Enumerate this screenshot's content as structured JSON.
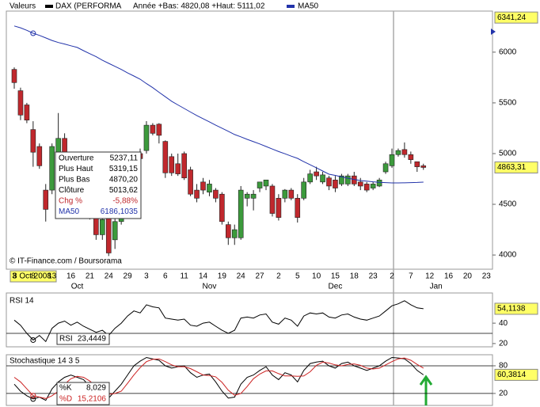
{
  "chart_data": [
    {
      "type": "candlestick",
      "header_label": "Valeurs",
      "name": "DAX (PERFORMA",
      "range_text": "Année +Bas: 4820,08 +Haut: 5111,02",
      "credit": "© IT-Finance.com / Boursorama",
      "cursor_label": "8 Oct 2008",
      "up_color": "#3c9a3c",
      "down_color": "#c0282d",
      "categories": [
        "3",
        null,
        null,
        "8",
        null,
        null,
        "13",
        null,
        null,
        "16",
        null,
        null,
        "21",
        null,
        null,
        "24",
        null,
        null,
        "29",
        null,
        null,
        "3",
        null,
        null,
        "6",
        null,
        null,
        "11",
        null,
        null,
        "14",
        null,
        null,
        "19",
        null,
        null,
        "24",
        null,
        null,
        "27",
        null,
        null,
        "2",
        null,
        null,
        "5",
        null,
        null,
        "10",
        null,
        null,
        "15",
        null,
        null,
        "18",
        null,
        null,
        "23",
        null,
        null,
        "2",
        null,
        null,
        "7",
        null,
        null,
        "12",
        null,
        null,
        "16",
        null,
        null,
        "20",
        null,
        null,
        "23",
        null
      ],
      "month_categories": [
        null,
        null,
        null,
        null,
        null,
        null,
        null,
        null,
        null,
        null,
        "Oct",
        null,
        null,
        null,
        null,
        null,
        null,
        null,
        null,
        null,
        null,
        null,
        null,
        null,
        null,
        null,
        null,
        null,
        null,
        null,
        null,
        "Nov",
        null,
        null,
        null,
        null,
        null,
        null,
        null,
        null,
        null,
        null,
        null,
        null,
        null,
        null,
        null,
        null,
        null,
        null,
        null,
        "Dec",
        null,
        null,
        null,
        null,
        null,
        null,
        null,
        null,
        null,
        null,
        null,
        null,
        null,
        null,
        null,
        "Jan",
        null,
        null,
        null,
        null,
        null,
        null,
        null,
        null,
        null
      ],
      "open": [
        5830,
        5620,
        5480,
        5237.11,
        5070,
        4640,
        4640,
        5000,
        5150,
        4800,
        4600,
        4800,
        4550,
        4400,
        4200,
        4470,
        4150,
        4330,
        4520,
        4800,
        5000,
        5030,
        5280,
        5290,
        5120,
        4970,
        4900,
        5000,
        4840,
        4640,
        4720,
        4620,
        4640,
        4600,
        4300,
        4170,
        4170,
        4560,
        4560,
        4660,
        4680,
        4680,
        4560,
        4560,
        4640,
        4560,
        4560,
        4720,
        4820,
        4720,
        4760,
        4740,
        4700,
        4700,
        4780,
        4720,
        4700,
        4660,
        4680,
        4820,
        4880,
        4990,
        5040,
        4990,
        4920,
        4880,
        null,
        null,
        null,
        null,
        null,
        null,
        null,
        null,
        null,
        null,
        null
      ],
      "high": [
        5850,
        5650,
        5500,
        5319.15,
        5100,
        4700,
        5100,
        5400,
        5200,
        4850,
        4850,
        4820,
        4600,
        4450,
        4400,
        4520,
        4400,
        4550,
        4850,
        5000,
        5050,
        5320,
        5300,
        5300,
        5130,
        5000,
        5000,
        5020,
        4870,
        4700,
        4760,
        4740,
        4660,
        4620,
        4330,
        4300,
        4680,
        4620,
        4640,
        4720,
        4740,
        4700,
        4600,
        4650,
        4660,
        4600,
        4760,
        4840,
        4870,
        4820,
        4780,
        4780,
        4800,
        4800,
        4820,
        4760,
        4720,
        4720,
        4760,
        4920,
        5050,
        5050,
        5110,
        5020,
        4920,
        4900,
        null,
        null,
        null,
        null,
        null,
        null,
        null,
        null,
        null,
        null,
        null
      ],
      "low": [
        5640,
        5330,
        5300,
        4870.2,
        4850,
        4330,
        4600,
        4950,
        4750,
        4550,
        4580,
        4500,
        4350,
        4150,
        4150,
        3990,
        4060,
        4300,
        4500,
        4780,
        4900,
        5000,
        5180,
        5100,
        4760,
        4780,
        4780,
        4740,
        4580,
        4520,
        4600,
        4580,
        4520,
        4300,
        4100,
        4100,
        4150,
        4480,
        4440,
        4620,
        4640,
        4380,
        4340,
        4520,
        4540,
        4320,
        4540,
        4700,
        4740,
        4700,
        4640,
        4620,
        4680,
        4680,
        4680,
        4640,
        4620,
        4640,
        4670,
        4800,
        4860,
        4970,
        4960,
        4900,
        4820,
        4840,
        null,
        null,
        null,
        null,
        null,
        null,
        null,
        null,
        null,
        null,
        null
      ],
      "close": [
        5700,
        5380,
        5330,
        5013.62,
        4880,
        4450,
        5070,
        5150,
        4800,
        4600,
        4800,
        4550,
        4400,
        4200,
        4350,
        4020,
        4330,
        4520,
        4800,
        4950,
        4950,
        5280,
        5200,
        5180,
        4810,
        4810,
        4800,
        4760,
        4600,
        4560,
        4640,
        4700,
        4560,
        4330,
        4170,
        4250,
        4640,
        4600,
        4600,
        4720,
        4740,
        4410,
        4370,
        4640,
        4560,
        4370,
        4720,
        4800,
        4780,
        4790,
        4680,
        4660,
        4780,
        4780,
        4700,
        4680,
        4640,
        4700,
        4740,
        4900,
        4990,
        5030,
        4990,
        4940,
        4870,
        4863.31,
        null,
        null,
        null,
        null,
        null,
        null,
        null,
        null,
        null,
        null,
        null
      ],
      "overlay": {
        "name": "MA50",
        "color": "#2233aa",
        "values": [
          6258,
          6240,
          6215,
          6186.1035,
          6165,
          6140,
          6115,
          6095,
          6080,
          6063,
          6047,
          6015,
          5985,
          5955,
          5920,
          5890,
          5860,
          5830,
          5795,
          5765,
          5734,
          5690,
          5650,
          5605,
          5560,
          5516,
          5480,
          5445,
          5410,
          5375,
          5344,
          5313,
          5280,
          5250,
          5220,
          5188,
          5165,
          5140,
          5118,
          5095,
          5070,
          5045,
          5020,
          4998,
          4975,
          4953,
          4920,
          4890,
          4860,
          4828,
          4797,
          4785,
          4770,
          4758,
          4745,
          4734,
          4728,
          4722,
          4717,
          4714,
          4711,
          4711,
          4712,
          4714,
          4716,
          4719,
          null,
          null,
          null,
          null,
          null,
          null,
          null,
          null,
          null,
          null,
          null
        ]
      },
      "tooltip": {
        "rows": [
          {
            "label": "Ouverture",
            "value": "5237,11"
          },
          {
            "label": "Plus Haut",
            "value": "5319,15"
          },
          {
            "label": "Plus Bas",
            "value": "4870,20"
          },
          {
            "label": "Clôture",
            "value": "5013,62"
          },
          {
            "label": "Chg %",
            "value": "-5,88%",
            "color": "#c0282d"
          },
          {
            "label": "MA50",
            "value": "6186,1035",
            "color": "#2233aa"
          }
        ]
      },
      "ylim": [
        3860,
        6405
      ],
      "yticks": [
        4000,
        4500,
        5000,
        5500,
        6000
      ],
      "axis_markers": [
        {
          "value": 6341.24,
          "label": "6341,24"
        },
        {
          "value": 4863.31,
          "label": "4863,31"
        }
      ]
    },
    {
      "type": "line",
      "title": "RSI 14",
      "series": [
        {
          "name": "RSI",
          "color": "#000000",
          "readout": "23,4449",
          "values": [
            43,
            38,
            30,
            23.4449,
            28,
            22,
            35,
            40,
            42,
            38,
            41,
            37,
            34,
            31,
            33,
            28,
            35,
            40,
            47,
            52,
            50,
            58,
            56,
            55,
            45,
            44,
            43,
            44,
            38,
            37,
            40,
            41,
            37,
            33,
            30,
            33,
            45,
            46,
            45,
            48,
            49,
            41,
            39,
            45,
            43,
            37,
            47,
            50,
            49,
            50,
            46,
            45,
            48,
            49,
            46,
            44,
            43,
            45,
            47,
            52,
            57,
            59,
            62,
            58,
            55,
            54.1138,
            null,
            null,
            null,
            null,
            null,
            null,
            null,
            null,
            null,
            null,
            null
          ]
        }
      ],
      "ylim": [
        16.8,
        69.6
      ],
      "yticks": [
        20,
        40
      ],
      "hlines": [
        30
      ],
      "axis_markers": [
        {
          "value": 54.1138,
          "label": "54,1138"
        }
      ]
    },
    {
      "type": "line",
      "title": "Stochastique 14 3 5",
      "series": [
        {
          "name": "%K",
          "color": "#000000",
          "readout": "8,029",
          "values": [
            40,
            25,
            15,
            8.029,
            12,
            5,
            30,
            45,
            55,
            60,
            55,
            50,
            35,
            20,
            25,
            10,
            25,
            40,
            60,
            80,
            90,
            98,
            95,
            92,
            80,
            75,
            78,
            80,
            65,
            55,
            60,
            62,
            45,
            25,
            10,
            12,
            40,
            55,
            60,
            70,
            78,
            60,
            50,
            65,
            60,
            45,
            70,
            85,
            88,
            90,
            80,
            75,
            85,
            88,
            80,
            75,
            70,
            75,
            80,
            90,
            98,
            97,
            95,
            85,
            70,
            60.3814,
            null,
            null,
            null,
            null,
            null,
            null,
            null,
            null,
            null,
            null,
            null
          ]
        },
        {
          "name": "%D",
          "color": "#cc2222",
          "readout": "15,2106",
          "values": [
            55,
            45,
            30,
            15.2106,
            12,
            9,
            15,
            25,
            40,
            52,
            57,
            55,
            47,
            35,
            26,
            18,
            20,
            25,
            42,
            60,
            76,
            89,
            94,
            95,
            89,
            82,
            78,
            78,
            74,
            67,
            60,
            59,
            56,
            44,
            27,
            16,
            20,
            35,
            52,
            62,
            69,
            69,
            63,
            58,
            58,
            57,
            58,
            67,
            81,
            88,
            86,
            82,
            80,
            83,
            84,
            81,
            75,
            73,
            75,
            82,
            89,
            95,
            97,
            92,
            83,
            75,
            null,
            null,
            null,
            null,
            null,
            null,
            null,
            null,
            null,
            null,
            null
          ]
        }
      ],
      "ylim": [
        -6,
        104
      ],
      "yticks": [
        20,
        80
      ],
      "hlines": [
        20,
        80
      ],
      "axis_markers": [
        {
          "value": 60.3814,
          "label": "60,3814"
        }
      ]
    }
  ]
}
